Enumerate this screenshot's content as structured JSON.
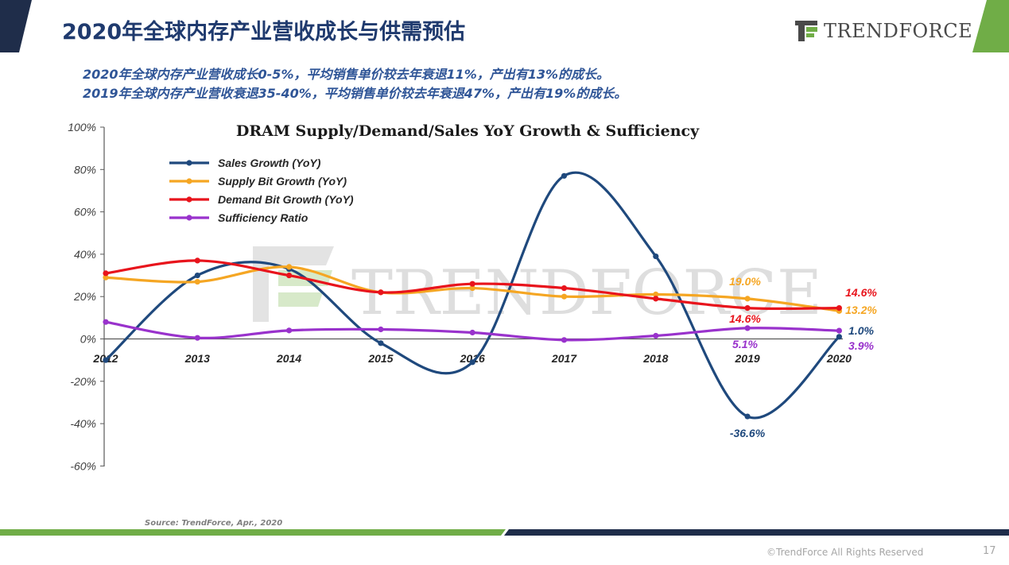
{
  "header": {
    "title": "2020年全球内存产业营收成长与供需预估",
    "logo_text": "TRENDFORCE",
    "subtitle_lines": [
      "2020年全球内存产业营收成长0-5%，平均销售单价较去年衰退11%，产出有13%的成长。",
      "2019年全球内存产业营收衰退35-40%，平均销售单价较去年衰退47%，产出有19%的成长。"
    ]
  },
  "footer": {
    "source": "Source: TrendForce, Apr., 2020",
    "copyright": "©TrendForce All Rights Reserved",
    "page_number": "17"
  },
  "colors": {
    "title": "#1f3a6e",
    "subtitle": "#2f5597",
    "accent_green": "#70ad47",
    "dark_navy": "#1f2d4a"
  },
  "chart_data": {
    "type": "line",
    "title": "DRAM Supply/Demand/Sales YoY Growth & Sufficiency",
    "x": [
      "2012",
      "2013",
      "2014",
      "2015",
      "2016",
      "2017",
      "2018",
      "2019",
      "2020"
    ],
    "ylim": [
      -60,
      100
    ],
    "yticks": [
      -60,
      -40,
      -20,
      0,
      20,
      40,
      60,
      80,
      100
    ],
    "ytick_labels": [
      "-60%",
      "-40%",
      "-20%",
      "0%",
      "20%",
      "40%",
      "60%",
      "80%",
      "100%"
    ],
    "legend_position": "top-left",
    "watermark": "TRENDFORCE",
    "series": [
      {
        "name": "Sales Growth (YoY)",
        "color": "#1f497d",
        "values": [
          -10,
          30,
          33,
          -2,
          -11,
          77,
          39,
          -36.6,
          1.0
        ],
        "labels": {
          "7": "-36.6%",
          "8": "1.0%"
        }
      },
      {
        "name": "Supply Bit Growth (YoY)",
        "color": "#f5a623",
        "values": [
          29,
          27,
          34,
          22,
          24,
          20,
          21,
          19.0,
          13.2
        ],
        "labels": {
          "7": "19.0%",
          "8": "13.2%"
        }
      },
      {
        "name": "Demand Bit Growth (YoY)",
        "color": "#e8141c",
        "values": [
          31,
          37,
          30,
          22,
          26,
          24,
          19,
          14.6,
          14.6
        ],
        "labels": {
          "7": "14.6%",
          "8": "14.6%"
        }
      },
      {
        "name": "Sufficiency Ratio",
        "color": "#9932cc",
        "values": [
          8,
          0.5,
          4,
          4.5,
          3,
          -0.5,
          1.5,
          5.1,
          3.9
        ],
        "labels": {
          "7": "5.1%",
          "8": "3.9%"
        }
      }
    ]
  }
}
